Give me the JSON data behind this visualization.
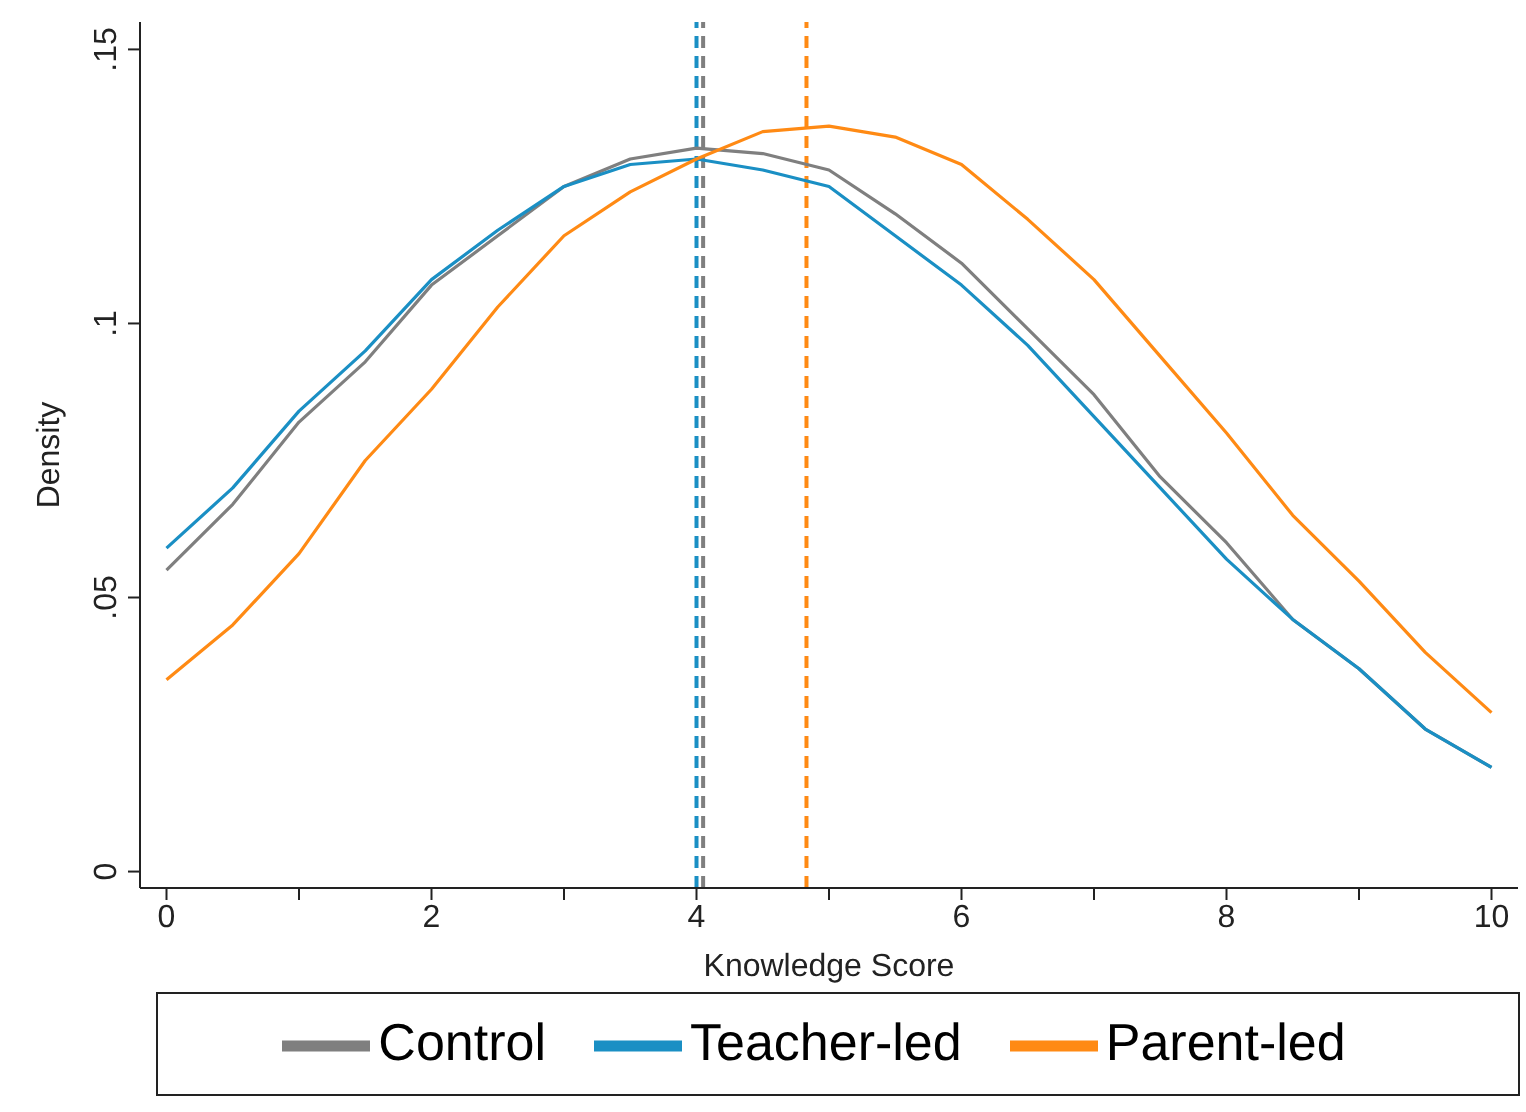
{
  "chart_data": {
    "type": "line",
    "xlabel": "Knowledge Score",
    "ylabel": "Density",
    "x": [
      0,
      0.5,
      1,
      1.5,
      2,
      2.5,
      3,
      3.5,
      4,
      4.5,
      5,
      5.5,
      6,
      6.5,
      7,
      7.5,
      8,
      8.5,
      9,
      9.5,
      10
    ],
    "series": [
      {
        "name": "Control",
        "color": "#7f7f7f",
        "values": [
          0.055,
          0.067,
          0.082,
          0.093,
          0.107,
          0.116,
          0.125,
          0.13,
          0.132,
          0.131,
          0.128,
          0.12,
          0.111,
          0.099,
          0.087,
          0.072,
          0.06,
          0.046,
          0.037,
          0.026,
          0.019
        ]
      },
      {
        "name": "Teacher-led",
        "color": "#1a8fc4",
        "values": [
          0.059,
          0.07,
          0.084,
          0.095,
          0.108,
          0.117,
          0.125,
          0.129,
          0.13,
          0.128,
          0.125,
          0.116,
          0.107,
          0.096,
          0.083,
          0.07,
          0.057,
          0.046,
          0.037,
          0.026,
          0.019
        ]
      },
      {
        "name": "Parent-led",
        "color": "#ff8a14",
        "values": [
          0.035,
          0.045,
          0.058,
          0.075,
          0.088,
          0.103,
          0.116,
          0.124,
          0.13,
          0.135,
          0.136,
          0.134,
          0.129,
          0.119,
          0.108,
          0.094,
          0.08,
          0.065,
          0.053,
          0.04,
          0.029
        ]
      }
    ],
    "xlim": [
      -0.2,
      10.2
    ],
    "xticks": [
      0,
      {
        "value": 1,
        "label": null
      },
      2,
      {
        "value": 3,
        "label": null
      },
      4,
      {
        "value": 5,
        "label": null
      },
      6,
      {
        "value": 7,
        "label": null
      },
      8,
      {
        "value": 9,
        "label": null
      },
      10
    ],
    "ylim": [
      -0.003,
      0.155
    ],
    "yticks": [
      0,
      {
        "value": 0.05,
        "label": ".05"
      },
      {
        "value": 0.1,
        "label": ".1"
      },
      {
        "value": 0.15,
        "label": ".15"
      }
    ],
    "ref_lines": [
      {
        "axis": "x",
        "value": 4.05,
        "color": "#7f7f7f",
        "line_style": "dashed"
      },
      {
        "axis": "x",
        "value": 4.0,
        "color": "#1a8fc4",
        "line_style": "dashed"
      },
      {
        "axis": "x",
        "value": 4.83,
        "color": "#ff8a14",
        "line_style": "dashed"
      }
    ],
    "grid": false,
    "legend": "bottom",
    "marker": "none",
    "line_style": "solid"
  }
}
